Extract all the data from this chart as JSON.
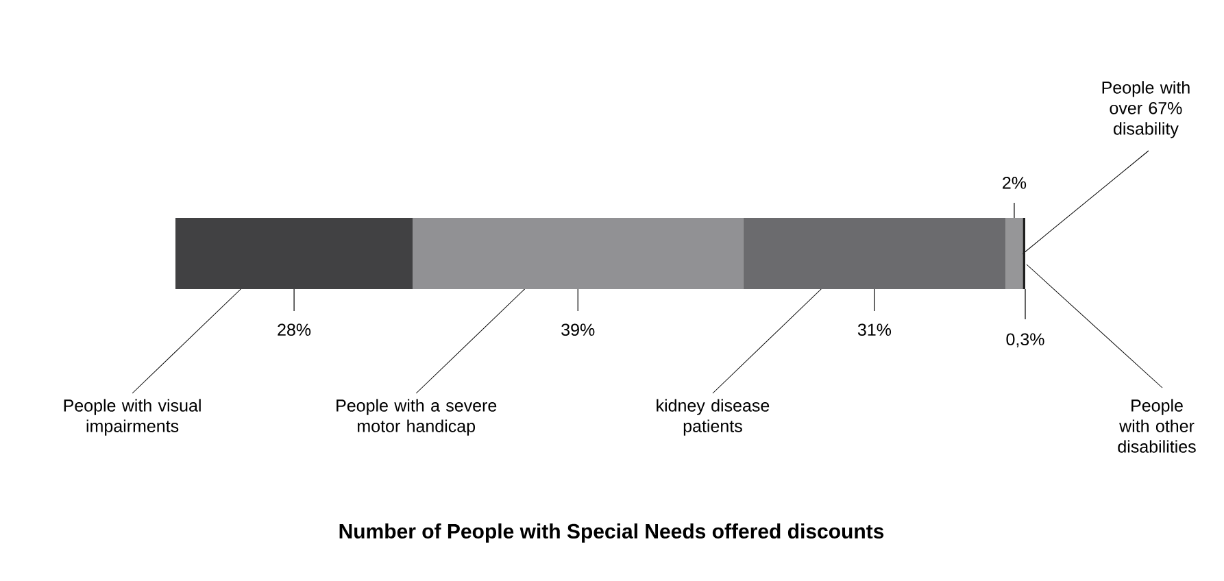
{
  "chart_data": {
    "type": "bar",
    "orientation": "horizontal",
    "stacked": true,
    "title": "Number of People with Special Needs offered discounts",
    "categories": [
      null
    ],
    "series": [
      {
        "name": "People with visual impairments",
        "color": "#414143",
        "values": [
          28
        ],
        "value_labels": [
          "28%"
        ]
      },
      {
        "name": "People with a severe motor handicap",
        "color": "#919194",
        "values": [
          39
        ],
        "value_labels": [
          "39%"
        ]
      },
      {
        "name": "kidney disease patients",
        "color": "#6b6b6e",
        "values": [
          31
        ],
        "value_labels": [
          "31%"
        ]
      },
      {
        "name": "People with over 67% disability",
        "color": "#969698",
        "values": [
          2
        ],
        "value_labels": [
          "2%"
        ]
      },
      {
        "name": "People with other disabilities",
        "color": "#1e1e1e",
        "values": [
          0.3
        ],
        "value_labels": [
          "0,3%"
        ]
      }
    ]
  }
}
